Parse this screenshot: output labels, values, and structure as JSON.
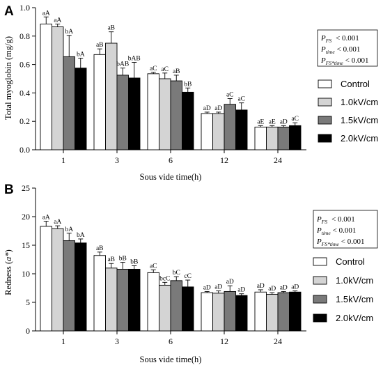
{
  "chart_data": [
    {
      "type": "bar",
      "panel": "A",
      "xlabel": "Sous vide time(h)",
      "ylabel": "Total myoglobin (mg/g)",
      "ylim": [
        0,
        1.0
      ],
      "yticks": [
        "0.0",
        "0.2",
        "0.4",
        "0.6",
        "0.8",
        "1.0"
      ],
      "categories": [
        "1",
        "3",
        "6",
        "12",
        "24"
      ],
      "colors": [
        "#ffffff",
        "#d4d4d4",
        "#7a7a7a",
        "#000000"
      ],
      "series": [
        {
          "name": "Control",
          "values": [
            0.885,
            0.67,
            0.535,
            0.255,
            0.16
          ],
          "errors": [
            0.05,
            0.04,
            0.01,
            0.01,
            0.01
          ],
          "labels": [
            "aA",
            "aB",
            "aC",
            "aD",
            "aE"
          ]
        },
        {
          "name": "1.0kV/cm",
          "values": [
            0.865,
            0.75,
            0.5,
            0.255,
            0.16
          ],
          "errors": [
            0.02,
            0.08,
            0.04,
            0.01,
            0.01
          ],
          "labels": [
            "aA",
            "aB",
            "aC",
            "aD",
            "aE"
          ]
        },
        {
          "name": "1.5kV/cm",
          "values": [
            0.655,
            0.525,
            0.485,
            0.32,
            0.16
          ],
          "errors": [
            0.15,
            0.05,
            0.04,
            0.04,
            0.01
          ],
          "labels": [
            "bA",
            "bAB",
            "aB",
            "aC",
            "aD"
          ]
        },
        {
          "name": "2.0kV/cm",
          "values": [
            0.575,
            0.505,
            0.405,
            0.28,
            0.17
          ],
          "errors": [
            0.07,
            0.11,
            0.03,
            0.05,
            0.02
          ],
          "labels": [
            "bA",
            "bAB",
            "bB",
            "aC",
            "aC"
          ]
        }
      ],
      "legend": [
        "Control",
        "1.0kV/cm",
        "1.5kV/cm",
        "2.0kV/cm"
      ],
      "stats_box": [
        {
          "p": "P",
          "sub": "FS",
          "value": "< 0.001"
        },
        {
          "p": "P",
          "sub": "time",
          "value": "< 0.001"
        },
        {
          "p": "P",
          "sub": "FS*time",
          "value": "< 0.001"
        }
      ]
    },
    {
      "type": "bar",
      "panel": "B",
      "xlabel": "Sous vide time(h)",
      "ylabel_pre": "Redness (",
      "ylabel_var": "a*",
      "ylabel_post": ")",
      "ylim": [
        0,
        25
      ],
      "yticks": [
        "0",
        "5",
        "10",
        "15",
        "20",
        "25"
      ],
      "categories": [
        "1",
        "3",
        "6",
        "12",
        "24"
      ],
      "colors": [
        "#ffffff",
        "#d4d4d4",
        "#7a7a7a",
        "#000000"
      ],
      "series": [
        {
          "name": "Control",
          "values": [
            18.3,
            13.2,
            10.2,
            6.7,
            6.8
          ],
          "errors": [
            0.9,
            0.6,
            0.5,
            0.2,
            0.4
          ],
          "labels": [
            "aA",
            "aB",
            "aC",
            "aD",
            "aD"
          ]
        },
        {
          "name": "1.0kV/cm",
          "values": [
            17.9,
            11.0,
            8.0,
            6.6,
            6.4
          ],
          "errors": [
            0.5,
            0.8,
            0.5,
            0.4,
            0.3
          ],
          "labels": [
            "aA",
            "aB",
            "bcC",
            "aD",
            "aD"
          ]
        },
        {
          "name": "1.5kV/cm",
          "values": [
            15.8,
            10.8,
            8.8,
            6.9,
            6.7
          ],
          "errors": [
            1.3,
            1.2,
            0.7,
            1.0,
            0.2
          ],
          "labels": [
            "bA",
            "bB",
            "bC",
            "aD",
            "aD"
          ]
        },
        {
          "name": "2.0kV/cm",
          "values": [
            15.4,
            10.8,
            7.7,
            6.2,
            6.8
          ],
          "errors": [
            0.7,
            0.6,
            1.2,
            0.3,
            0.2
          ],
          "labels": [
            "bA",
            "bB",
            "cC",
            "aD",
            "aD"
          ]
        }
      ],
      "legend": [
        "Control",
        "1.0kV/cm",
        "1.5kV/cm",
        "2.0kV/cm"
      ],
      "stats_box": [
        {
          "p": "P",
          "sub": "FS",
          "value": "< 0.001"
        },
        {
          "p": "P",
          "sub": "time",
          "value": "< 0.001"
        },
        {
          "p": "P",
          "sub": "FS*time",
          "value": "< 0.001"
        }
      ]
    }
  ]
}
